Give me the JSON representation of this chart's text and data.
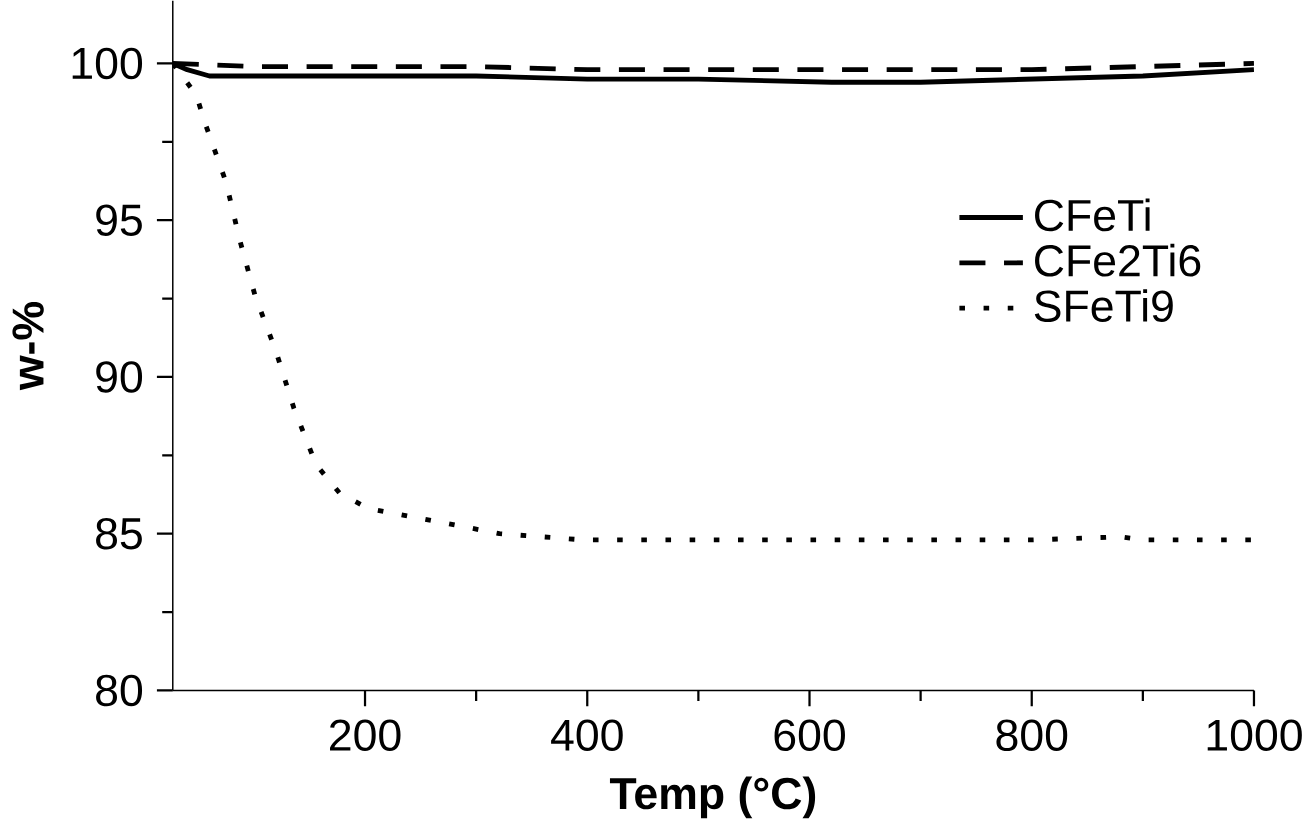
{
  "chart_data": {
    "type": "line",
    "xlabel": "Temp (°C)",
    "ylabel": "w-%",
    "xlim": [
      27,
      1000
    ],
    "ylim": [
      80,
      102
    ],
    "xticks": [
      200,
      400,
      600,
      800,
      1000
    ],
    "yticks": [
      80,
      85,
      90,
      95,
      100
    ],
    "legend": "right",
    "grid": false,
    "series": [
      {
        "name": "CFeTi",
        "color": "#000000",
        "line_style": "solid",
        "x": [
          27,
          40,
          60,
          100,
          200,
          300,
          400,
          500,
          620,
          700,
          800,
          900,
          1000
        ],
        "values": [
          100,
          99.8,
          99.6,
          99.6,
          99.6,
          99.6,
          99.5,
          99.5,
          99.4,
          99.4,
          99.5,
          99.6,
          99.8
        ]
      },
      {
        "name": "CFe2Ti6",
        "color": "#000000",
        "line_style": "dashed",
        "x": [
          27,
          100,
          200,
          300,
          400,
          500,
          600,
          700,
          800,
          900,
          1000
        ],
        "values": [
          100,
          99.9,
          99.9,
          99.9,
          99.8,
          99.8,
          99.8,
          99.8,
          99.8,
          99.9,
          100
        ]
      },
      {
        "name": "SFeTi9",
        "color": "#000000",
        "line_style": "dotted",
        "x": [
          27,
          48,
          57,
          75,
          87,
          101,
          120,
          136,
          156,
          177,
          203,
          263,
          321,
          397,
          500,
          600,
          700,
          800,
          880,
          900,
          1000
        ],
        "values": [
          100,
          99,
          98,
          96.2,
          94.4,
          92.6,
          90.8,
          89,
          87.2,
          86.3,
          85.8,
          85.4,
          85,
          84.8,
          84.8,
          84.8,
          84.8,
          84.8,
          84.9,
          84.8,
          84.8
        ]
      }
    ]
  }
}
